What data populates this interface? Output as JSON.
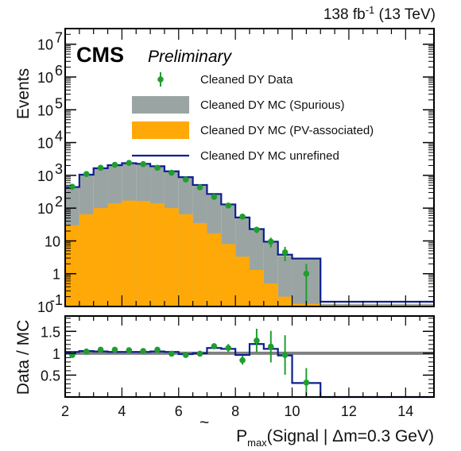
{
  "header": {
    "lumi_value": "138 fb",
    "lumi_exponent": "-1",
    "lumi_energy": " (13 TeV)",
    "experiment": "CMS",
    "status": "Preliminary"
  },
  "colors": {
    "data": "#1f9e2f",
    "spurious": "#9aa5a3",
    "pv_associated": "#ffa908",
    "unrefined": "#0d1f8f",
    "unity_line": "#808080"
  },
  "chart_data": [
    {
      "type": "histogram",
      "panel": "main",
      "ylabel": "Events",
      "yscale": "log",
      "ylim": [
        0.1,
        30000000
      ],
      "xlim": [
        2,
        15
      ],
      "grid": false,
      "legend_position": "top-right",
      "y_ticks": [
        {
          "value": 0.1,
          "label": "10",
          "exp": "-1"
        },
        {
          "value": 1,
          "label": "1",
          "exp": ""
        },
        {
          "value": 10,
          "label": "10",
          "exp": ""
        },
        {
          "value": 100,
          "label": "10",
          "exp": "2"
        },
        {
          "value": 1000,
          "label": "10",
          "exp": "3"
        },
        {
          "value": 10000,
          "label": "10",
          "exp": "4"
        },
        {
          "value": 100000,
          "label": "10",
          "exp": "5"
        },
        {
          "value": 1000000,
          "label": "10",
          "exp": "6"
        },
        {
          "value": 10000000,
          "label": "10",
          "exp": "7"
        }
      ],
      "bin_edges": [
        2,
        2.5,
        3,
        3.5,
        4,
        4.5,
        5,
        5.5,
        6,
        6.5,
        7,
        7.5,
        8,
        8.5,
        9,
        9.5,
        10,
        11,
        12,
        15
      ],
      "series": [
        {
          "name": "Cleaned DY Data",
          "style": "points",
          "x": [
            2.25,
            2.75,
            3.25,
            3.75,
            4.25,
            4.75,
            5.25,
            5.75,
            6.25,
            6.75,
            7.25,
            7.75,
            8.25,
            8.75,
            9.25,
            9.75,
            10.5
          ],
          "y": [
            450,
            1100,
            1700,
            2100,
            2400,
            2200,
            1700,
            1200,
            750,
            430,
            220,
            120,
            55,
            22,
            9.5,
            4.5,
            1.0
          ],
          "yerr": [
            25,
            35,
            40,
            45,
            50,
            47,
            40,
            35,
            28,
            21,
            15,
            11,
            7.5,
            4.7,
            3.1,
            2.1,
            1.0
          ]
        },
        {
          "name": "Cleaned DY MC (Spurious)",
          "style": "filled",
          "values": [
            430,
            1000,
            1600,
            2000,
            2300,
            2200,
            1850,
            1300,
            850,
            500,
            260,
            125,
            50,
            22,
            9,
            3.5,
            2.8,
            0.12,
            0.12
          ]
        },
        {
          "name": "Cleaned DY MC (PV-associated)",
          "style": "filled",
          "values": [
            30,
            65,
            100,
            140,
            170,
            165,
            140,
            100,
            65,
            35,
            17,
            8,
            3.3,
            1.3,
            0.5,
            0.2,
            0.12,
            0.11,
            0.11
          ]
        },
        {
          "name": "Cleaned DY MC unrefined",
          "style": "step",
          "values": [
            440,
            1050,
            1650,
            2050,
            2350,
            2250,
            1900,
            1330,
            880,
            510,
            270,
            130,
            52,
            23,
            9.5,
            3.8,
            2.9,
            0.14,
            0.14
          ]
        }
      ]
    },
    {
      "type": "line",
      "panel": "ratio",
      "ylabel": "Data / MC",
      "xlabel_main": "P",
      "xlabel_sub": "max",
      "xlabel_rest": "(Signal | Δm=0.3 GeV)",
      "ylim": [
        0,
        1.85
      ],
      "xlim": [
        2,
        15
      ],
      "x_ticks": [
        2,
        4,
        6,
        8,
        10,
        12,
        14
      ],
      "y_ticks": [
        0.5,
        1,
        1.5
      ],
      "series": [
        {
          "name": "Cleaned DY Data",
          "style": "points",
          "x": [
            2.25,
            2.75,
            3.25,
            3.75,
            4.25,
            4.75,
            5.25,
            5.75,
            6.25,
            6.75,
            7.25,
            7.75,
            8.25,
            8.75,
            9.25,
            9.75,
            10.5
          ],
          "y": [
            0.96,
            1.04,
            1.08,
            1.08,
            1.07,
            1.05,
            1.08,
            0.99,
            0.96,
            0.99,
            1.16,
            1.12,
            0.84,
            1.29,
            1.15,
            0.96,
            0.33
          ],
          "yerr": [
            0.05,
            0.04,
            0.04,
            0.04,
            0.04,
            0.04,
            0.04,
            0.04,
            0.04,
            0.05,
            0.07,
            0.09,
            0.1,
            0.27,
            0.36,
            0.45,
            0.33
          ]
        },
        {
          "name": "Cleaned DY MC unrefined",
          "style": "step",
          "values": [
            1.03,
            1.05,
            1.04,
            1.03,
            1.03,
            1.03,
            1.04,
            1.03,
            0.98,
            1.0,
            1.12,
            1.1,
            0.96,
            1.21,
            1.1,
            0.95,
            0.32,
            0.0,
            0.0
          ]
        }
      ]
    }
  ]
}
